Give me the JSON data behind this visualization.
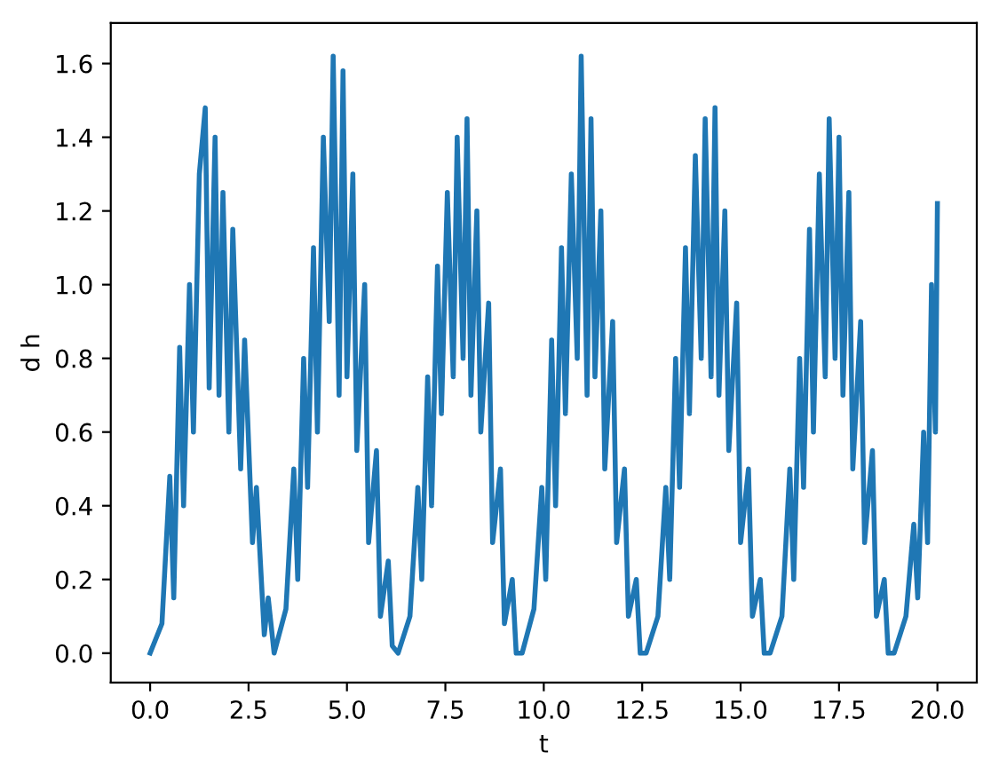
{
  "chart_data": {
    "type": "line",
    "xlabel": "t",
    "ylabel": "d h",
    "xlim": [
      -1,
      21
    ],
    "ylim": [
      -0.08,
      1.71
    ],
    "xticks": [
      {
        "value": 0,
        "label": "0.0"
      },
      {
        "value": 2.5,
        "label": "2.5"
      },
      {
        "value": 5,
        "label": "5.0"
      },
      {
        "value": 7.5,
        "label": "7.5"
      },
      {
        "value": 10,
        "label": "10.0"
      },
      {
        "value": 12.5,
        "label": "12.5"
      },
      {
        "value": 15,
        "label": "15.0"
      },
      {
        "value": 17.5,
        "label": "17.5"
      },
      {
        "value": 20,
        "label": "20.0"
      }
    ],
    "yticks": [
      {
        "value": 0,
        "label": "0.0"
      },
      {
        "value": 0.2,
        "label": "0.2"
      },
      {
        "value": 0.4,
        "label": "0.4"
      },
      {
        "value": 0.6,
        "label": "0.6"
      },
      {
        "value": 0.8,
        "label": "0.8"
      },
      {
        "value": 1.0,
        "label": "1.0"
      },
      {
        "value": 1.2,
        "label": "1.2"
      },
      {
        "value": 1.4,
        "label": "1.4"
      },
      {
        "value": 1.6,
        "label": "1.6"
      }
    ],
    "grid": false,
    "legend": false,
    "line_style": "solid",
    "series": [
      {
        "color": "#1f77b4",
        "x": [
          0,
          0.3,
          0.5,
          0.6,
          0.75,
          0.85,
          1.0,
          1.1,
          1.25,
          1.4,
          1.5,
          1.65,
          1.75,
          1.85,
          2.0,
          2.1,
          2.3,
          2.4,
          2.6,
          2.7,
          2.9,
          3.0,
          3.15,
          3.45,
          3.65,
          3.75,
          3.9,
          4.0,
          4.15,
          4.25,
          4.4,
          4.55,
          4.65,
          4.8,
          4.9,
          5.0,
          5.15,
          5.25,
          5.45,
          5.55,
          5.75,
          5.85,
          6.05,
          6.15,
          6.3,
          6.6,
          6.8,
          6.9,
          7.05,
          7.15,
          7.3,
          7.4,
          7.55,
          7.7,
          7.8,
          7.95,
          8.05,
          8.15,
          8.3,
          8.4,
          8.6,
          8.7,
          8.9,
          9.0,
          9.2,
          9.3,
          9.45,
          9.75,
          9.95,
          10.05,
          10.2,
          10.3,
          10.45,
          10.55,
          10.7,
          10.85,
          10.95,
          11.1,
          11.2,
          11.3,
          11.45,
          11.55,
          11.75,
          11.85,
          12.05,
          12.15,
          12.35,
          12.45,
          12.6,
          12.9,
          13.1,
          13.2,
          13.35,
          13.45,
          13.6,
          13.7,
          13.85,
          14.0,
          14.1,
          14.25,
          14.35,
          14.45,
          14.6,
          14.7,
          14.9,
          15.0,
          15.2,
          15.3,
          15.5,
          15.6,
          15.75,
          16.05,
          16.25,
          16.35,
          16.5,
          16.6,
          16.75,
          16.85,
          17.0,
          17.15,
          17.25,
          17.4,
          17.5,
          17.6,
          17.75,
          17.85,
          18.05,
          18.15,
          18.35,
          18.45,
          18.65,
          18.75,
          18.9,
          19.2,
          19.4,
          19.5,
          19.65,
          19.75,
          19.85,
          19.95,
          20.0
        ],
        "values": [
          0,
          0.08,
          0.48,
          0.15,
          0.83,
          0.4,
          1.0,
          0.6,
          1.3,
          1.48,
          0.72,
          1.4,
          0.7,
          1.25,
          0.6,
          1.15,
          0.5,
          0.85,
          0.3,
          0.45,
          0.05,
          0.15,
          0.0,
          0.12,
          0.5,
          0.2,
          0.8,
          0.45,
          1.1,
          0.6,
          1.4,
          0.9,
          1.62,
          0.7,
          1.58,
          0.75,
          1.3,
          0.55,
          1.0,
          0.3,
          0.55,
          0.1,
          0.25,
          0.02,
          0.0,
          0.1,
          0.45,
          0.2,
          0.75,
          0.4,
          1.05,
          0.65,
          1.25,
          0.75,
          1.4,
          0.8,
          1.45,
          0.7,
          1.2,
          0.6,
          0.95,
          0.3,
          0.5,
          0.08,
          0.2,
          0.0,
          0.0,
          0.12,
          0.45,
          0.2,
          0.85,
          0.4,
          1.1,
          0.65,
          1.3,
          0.8,
          1.62,
          0.7,
          1.45,
          0.75,
          1.2,
          0.5,
          0.9,
          0.3,
          0.5,
          0.1,
          0.2,
          0.0,
          0.0,
          0.1,
          0.45,
          0.2,
          0.8,
          0.45,
          1.1,
          0.65,
          1.35,
          0.8,
          1.45,
          0.75,
          1.48,
          0.7,
          1.2,
          0.55,
          0.95,
          0.3,
          0.5,
          0.1,
          0.2,
          0.0,
          0.0,
          0.1,
          0.5,
          0.2,
          0.8,
          0.45,
          1.15,
          0.6,
          1.3,
          0.75,
          1.45,
          0.8,
          1.4,
          0.7,
          1.25,
          0.5,
          0.9,
          0.3,
          0.55,
          0.1,
          0.2,
          0.0,
          0.0,
          0.1,
          0.35,
          0.15,
          0.6,
          0.3,
          1.0,
          0.6,
          1.22
        ]
      }
    ]
  }
}
